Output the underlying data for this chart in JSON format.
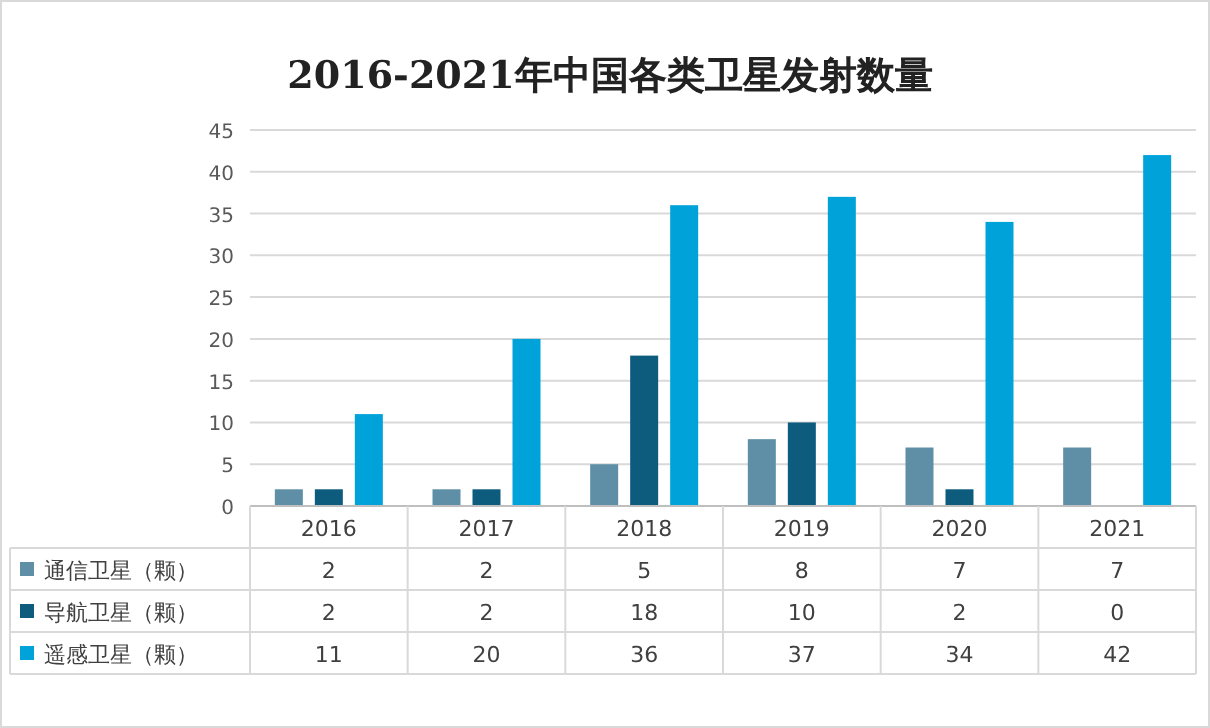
{
  "chart_data": {
    "type": "bar",
    "title": "2016-2021年中国各类卫星发射数量",
    "categories": [
      "2016",
      "2017",
      "2018",
      "2019",
      "2020",
      "2021"
    ],
    "series": [
      {
        "name": "通信卫星（颗）",
        "color": "#5f8fa6",
        "values": [
          2,
          2,
          5,
          8,
          7,
          7
        ]
      },
      {
        "name": "导航卫星（颗）",
        "color": "#0d5c7d",
        "values": [
          2,
          2,
          18,
          10,
          2,
          0
        ]
      },
      {
        "name": "遥感卫星（颗）",
        "color": "#00a2da",
        "values": [
          11,
          20,
          36,
          37,
          34,
          42
        ]
      }
    ],
    "ylim": [
      0,
      45
    ],
    "yticks": [
      0,
      5,
      10,
      15,
      20,
      25,
      30,
      35,
      40,
      45
    ],
    "grid": "y",
    "legend": "bottom",
    "data_labels": true
  }
}
